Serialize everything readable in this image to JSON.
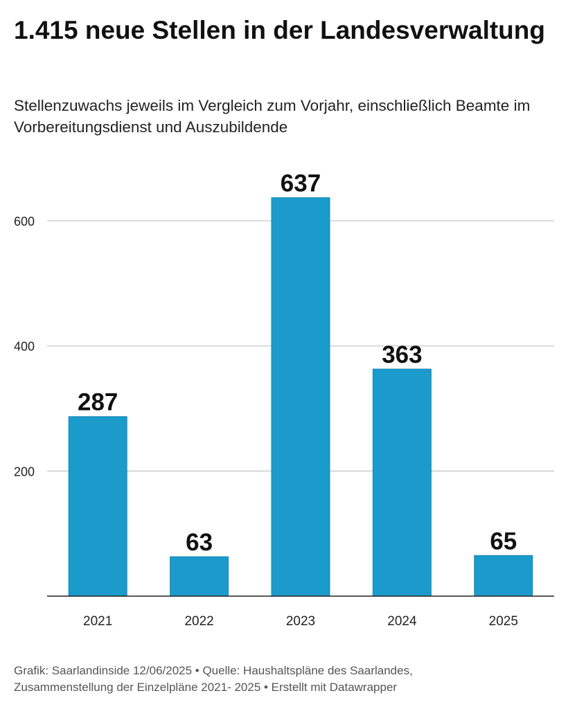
{
  "header": {
    "title": "1.415 neue Stellen in der Landesverwaltung",
    "subtitle": "Stellenzuwachs jeweils im Vergleich zum Vorjahr, einschließlich Beamte im Vorbereitungsdienst und Auszubildende"
  },
  "chart_data": {
    "type": "bar",
    "categories": [
      "2021",
      "2022",
      "2023",
      "2024",
      "2025"
    ],
    "values": [
      287,
      63,
      637,
      363,
      65
    ],
    "ylim": [
      0,
      637
    ],
    "yticks": [
      200,
      400,
      600
    ],
    "grid": true,
    "bar_color": "#1a9bcb",
    "data_labels": true
  },
  "footer": {
    "line1": "Grafik: Saarlandinside 12/06/2025 • Quelle: Haushaltspläne des Saarlandes,",
    "line2": "Zusammenstellung der Einzelpläne 2021- 2025 • Erstellt mit Datawrapper"
  }
}
